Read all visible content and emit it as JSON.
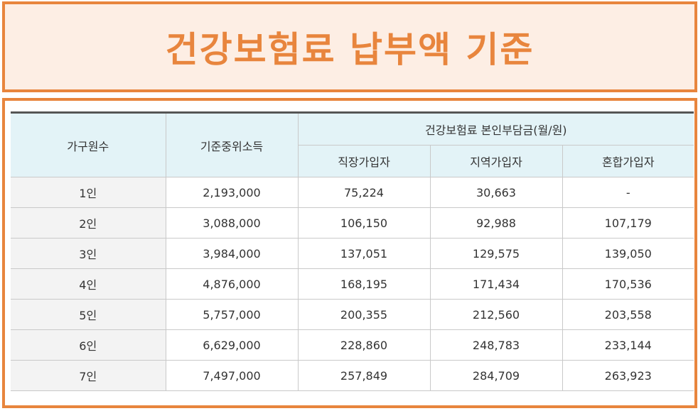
{
  "title": "건강보험료 납부액 기준",
  "table": {
    "headers": {
      "household": "가구원수",
      "income": "기준중위소득",
      "group": "건강보험료 본인부담금(월/원)",
      "sub": [
        "직장가입자",
        "지역가입자",
        "혼합가입자"
      ]
    },
    "rows": [
      [
        "1인",
        "2,193,000",
        "75,224",
        "30,663",
        "-"
      ],
      [
        "2인",
        "3,088,000",
        "106,150",
        "92,988",
        "107,179"
      ],
      [
        "3인",
        "3,984,000",
        "137,051",
        "129,575",
        "139,050"
      ],
      [
        "4인",
        "4,876,000",
        "168,195",
        "171,434",
        "170,536"
      ],
      [
        "5인",
        "5,757,000",
        "200,355",
        "212,560",
        "203,558"
      ],
      [
        "6인",
        "6,629,000",
        "228,860",
        "248,783",
        "233,144"
      ],
      [
        "7인",
        "7,497,000",
        "257,849",
        "284,709",
        "263,923"
      ]
    ]
  }
}
